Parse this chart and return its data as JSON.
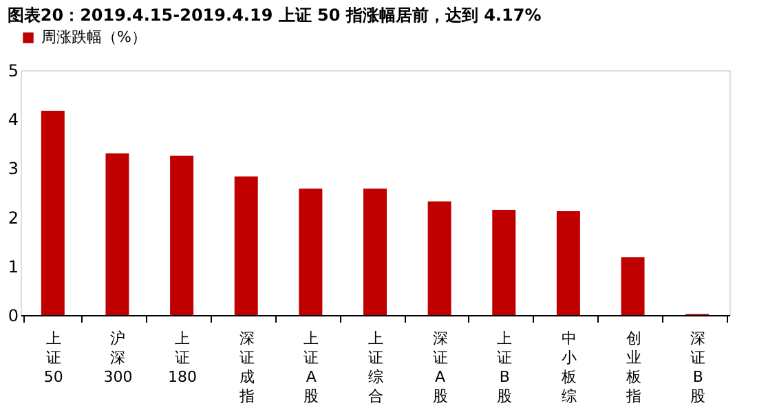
{
  "chart_data": {
    "type": "bar",
    "title": "图表20：2019.4.15-2019.4.19 上证 50 指涨幅居前，达到 4.17%",
    "categories": [
      "上证50",
      "沪深300",
      "上证180",
      "深证成指",
      "上证A股",
      "上证综合",
      "深证A股",
      "上证B股",
      "中小板综",
      "创业板指",
      "深证B股"
    ],
    "series": [
      {
        "name": "周涨跌幅（%）",
        "color": "#c00000",
        "values": [
          4.17,
          3.3,
          3.25,
          2.83,
          2.58,
          2.58,
          2.32,
          2.15,
          2.12,
          1.18,
          0.02
        ]
      }
    ],
    "ylim": [
      0,
      5
    ],
    "yticks": [
      0,
      1,
      2,
      3,
      4,
      5
    ],
    "grid": false,
    "legend": "top"
  }
}
